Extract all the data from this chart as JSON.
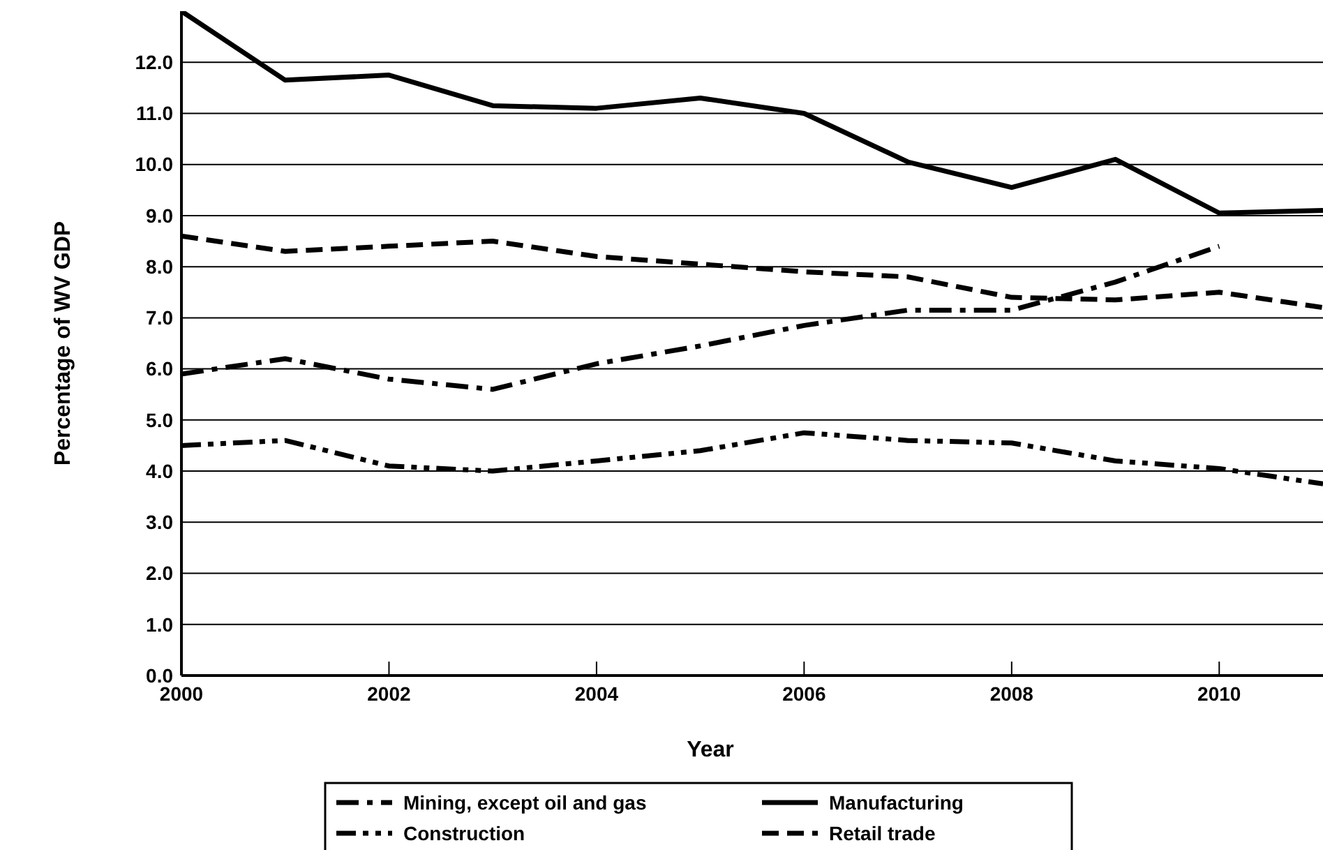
{
  "chart_data": {
    "type": "line",
    "xlabel": "Year",
    "ylabel": "Percentage of WV GDP",
    "x": [
      2000,
      2001,
      2002,
      2003,
      2004,
      2005,
      2006,
      2007,
      2008,
      2009,
      2010,
      2011
    ],
    "xlim": [
      2000,
      2011
    ],
    "xticks": [
      2000,
      2002,
      2004,
      2006,
      2008,
      2010
    ],
    "ylim": [
      0,
      13
    ],
    "yticks": [
      {
        "value": 0,
        "label": "0.0"
      },
      {
        "value": 1,
        "label": "1.0"
      },
      {
        "value": 2,
        "label": "2.0"
      },
      {
        "value": 3,
        "label": "3.0"
      },
      {
        "value": 4,
        "label": "4.0"
      },
      {
        "value": 5,
        "label": "5.0"
      },
      {
        "value": 6,
        "label": "6.0"
      },
      {
        "value": 7,
        "label": "7.0"
      },
      {
        "value": 8,
        "label": "8.0"
      },
      {
        "value": 9,
        "label": "9.0"
      },
      {
        "value": 10,
        "label": "10.0"
      },
      {
        "value": 11,
        "label": "11.0"
      },
      {
        "value": 12,
        "label": "12.0"
      }
    ],
    "grid": "y",
    "legend": "bottom",
    "marker": "none",
    "series": [
      {
        "name": "Mining, except oil and gas",
        "color": "#000000",
        "line_style": "dashdot",
        "values": [
          5.9,
          6.2,
          5.8,
          5.6,
          6.1,
          6.45,
          6.85,
          7.15,
          7.15,
          7.7,
          8.4,
          null
        ]
      },
      {
        "name": "Manufacturing",
        "color": "#000000",
        "line_style": "solid",
        "values": [
          13.0,
          11.65,
          11.75,
          11.15,
          11.1,
          11.3,
          11.0,
          10.05,
          9.55,
          10.1,
          9.05,
          9.1
        ]
      },
      {
        "name": "Construction",
        "color": "#000000",
        "line_style": "dashdotdot",
        "values": [
          4.5,
          4.6,
          4.1,
          4.0,
          4.2,
          4.4,
          4.75,
          4.6,
          4.55,
          4.2,
          4.05,
          3.75
        ]
      },
      {
        "name": "Retail trade",
        "color": "#000000",
        "line_style": "dashed",
        "values": [
          8.6,
          8.3,
          8.4,
          8.5,
          8.2,
          8.05,
          7.9,
          7.8,
          7.4,
          7.35,
          7.5,
          7.2
        ]
      }
    ]
  }
}
